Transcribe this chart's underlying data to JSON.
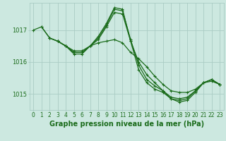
{
  "line1": {
    "x": [
      0,
      1,
      2,
      3,
      4,
      5,
      6,
      7,
      8,
      9,
      10,
      11,
      12,
      13,
      14,
      15,
      16,
      17,
      18,
      19,
      20,
      21,
      22,
      23
    ],
    "y": [
      1017.0,
      1017.1,
      1016.75,
      1016.65,
      1016.5,
      1016.35,
      1016.35,
      1016.5,
      1016.6,
      1016.65,
      1016.7,
      1016.6,
      1016.3,
      1016.1,
      1015.85,
      1015.55,
      1015.3,
      1015.1,
      1015.05,
      1015.05,
      1015.15,
      1015.35,
      1015.4,
      1015.3
    ]
  },
  "line2": {
    "x": [
      1,
      2,
      3,
      4,
      5,
      6,
      7,
      8,
      9,
      10,
      11,
      12,
      13,
      14,
      15,
      16,
      17,
      18,
      19,
      20,
      21,
      22,
      23
    ],
    "y": [
      1017.1,
      1016.75,
      1016.65,
      1016.5,
      1016.3,
      1016.3,
      1016.5,
      1016.7,
      1017.1,
      1017.55,
      1017.5,
      1016.65,
      1016.0,
      1015.6,
      1015.35,
      1015.1,
      1014.9,
      1014.85,
      1014.9,
      1015.1,
      1015.35,
      1015.45,
      1015.3
    ]
  },
  "line3": {
    "x": [
      2,
      3,
      4,
      5,
      6,
      7,
      8,
      9,
      10,
      11,
      12,
      13,
      14,
      15,
      16,
      17,
      18,
      19,
      20,
      21,
      22,
      23
    ],
    "y": [
      1016.75,
      1016.65,
      1016.5,
      1016.3,
      1016.3,
      1016.5,
      1016.75,
      1017.15,
      1017.65,
      1017.6,
      1016.7,
      1015.9,
      1015.45,
      1015.25,
      1015.1,
      1014.85,
      1014.8,
      1014.85,
      1015.1,
      1015.35,
      1015.45,
      1015.3
    ]
  },
  "line4": {
    "x": [
      3,
      4,
      5,
      6,
      7,
      8,
      9,
      10,
      11,
      12,
      13,
      14,
      15,
      16,
      17,
      18,
      19,
      20,
      21,
      22,
      23
    ],
    "y": [
      1016.65,
      1016.5,
      1016.25,
      1016.25,
      1016.5,
      1016.8,
      1017.2,
      1017.7,
      1017.65,
      1016.65,
      1015.75,
      1015.35,
      1015.15,
      1015.05,
      1014.85,
      1014.75,
      1014.8,
      1015.05,
      1015.35,
      1015.45,
      1015.3
    ]
  },
  "line_color": "#1a6b1a",
  "marker": "+",
  "marker_size": 3,
  "marker_edge_width": 0.8,
  "bg_color": "#cce8e0",
  "grid_color": "#aaccC4",
  "xlabel": "Graphe pression niveau de la mer (hPa)",
  "xlabel_fontsize": 7,
  "xlim": [
    -0.5,
    23.5
  ],
  "ylim": [
    1014.5,
    1017.85
  ],
  "yticks": [
    1015,
    1016,
    1017
  ],
  "xticks": [
    0,
    1,
    2,
    3,
    4,
    5,
    6,
    7,
    8,
    9,
    10,
    11,
    12,
    13,
    14,
    15,
    16,
    17,
    18,
    19,
    20,
    21,
    22,
    23
  ],
  "tick_fontsize": 5.5,
  "linewidth": 0.9
}
